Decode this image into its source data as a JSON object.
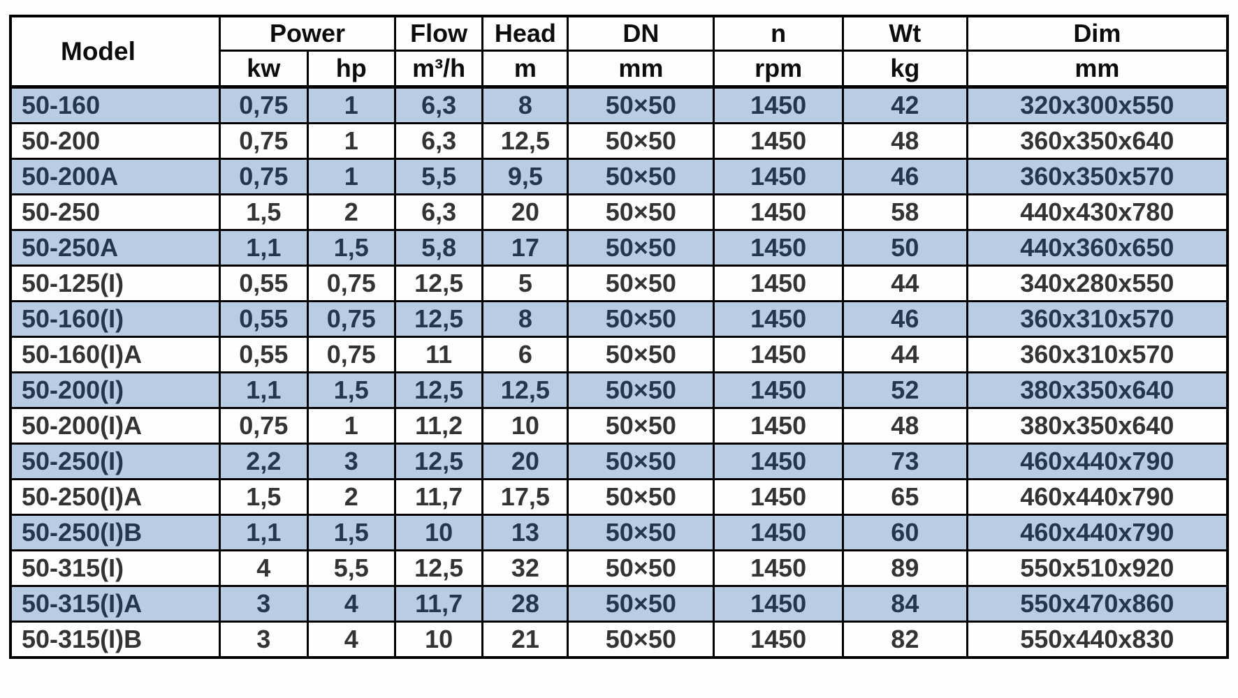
{
  "table": {
    "header": {
      "model": "Model",
      "power": "Power",
      "flow": "Flow",
      "head": "Head",
      "dn": "DN",
      "n": "n",
      "wt": "Wt",
      "dim": "Dim",
      "units": {
        "kw": "kw",
        "hp": "hp",
        "flow": "m³/h",
        "head": "m",
        "dn": "mm",
        "n": "rpm",
        "wt": "kg",
        "dim": "mm"
      }
    },
    "column_names": [
      "model",
      "power-kw",
      "power-hp",
      "flow-m3h",
      "head-m",
      "dn-mm",
      "n-rpm",
      "wt-kg",
      "dim-mm"
    ],
    "rows": [
      [
        "50-160",
        "0,75",
        "1",
        "6,3",
        "8",
        "50×50",
        "1450",
        "42",
        "320x300x550"
      ],
      [
        "50-200",
        "0,75",
        "1",
        "6,3",
        "12,5",
        "50×50",
        "1450",
        "48",
        "360x350x640"
      ],
      [
        "50-200A",
        "0,75",
        "1",
        "5,5",
        "9,5",
        "50×50",
        "1450",
        "46",
        "360x350x570"
      ],
      [
        "50-250",
        "1,5",
        "2",
        "6,3",
        "20",
        "50×50",
        "1450",
        "58",
        "440x430x780"
      ],
      [
        "50-250A",
        "1,1",
        "1,5",
        "5,8",
        "17",
        "50×50",
        "1450",
        "50",
        "440x360x650"
      ],
      [
        "50-125(I)",
        "0,55",
        "0,75",
        "12,5",
        "5",
        "50×50",
        "1450",
        "44",
        "340x280x550"
      ],
      [
        "50-160(I)",
        "0,55",
        "0,75",
        "12,5",
        "8",
        "50×50",
        "1450",
        "46",
        "360x310x570"
      ],
      [
        "50-160(I)A",
        "0,55",
        "0,75",
        "11",
        "6",
        "50×50",
        "1450",
        "44",
        "360x310x570"
      ],
      [
        "50-200(I)",
        "1,1",
        "1,5",
        "12,5",
        "12,5",
        "50×50",
        "1450",
        "52",
        "380x350x640"
      ],
      [
        "50-200(I)A",
        "0,75",
        "1",
        "11,2",
        "10",
        "50×50",
        "1450",
        "48",
        "380x350x640"
      ],
      [
        "50-250(I)",
        "2,2",
        "3",
        "12,5",
        "20",
        "50×50",
        "1450",
        "73",
        "460x440x790"
      ],
      [
        "50-250(I)A",
        "1,5",
        "2",
        "11,7",
        "17,5",
        "50×50",
        "1450",
        "65",
        "460x440x790"
      ],
      [
        "50-250(I)B",
        "1,1",
        "1,5",
        "10",
        "13",
        "50×50",
        "1450",
        "60",
        "460x440x790"
      ],
      [
        "50-315(I)",
        "4",
        "5,5",
        "12,5",
        "32",
        "50×50",
        "1450",
        "89",
        "550x510x920"
      ],
      [
        "50-315(I)A",
        "3",
        "4",
        "11,7",
        "28",
        "50×50",
        "1450",
        "84",
        "550x470x860"
      ],
      [
        "50-315(I)B",
        "3",
        "4",
        "10",
        "21",
        "50×50",
        "1450",
        "82",
        "550x440x830"
      ]
    ],
    "highlighted_row_indices": [
      0,
      2,
      4,
      6,
      8,
      10,
      12,
      14
    ]
  },
  "colors": {
    "row_highlight": "#b8cce4",
    "row_plain": "#fefefe",
    "text_plain": "#333333",
    "text_highlight": "#22364e",
    "header_text": "#0c0c0c",
    "border": "#000000"
  }
}
